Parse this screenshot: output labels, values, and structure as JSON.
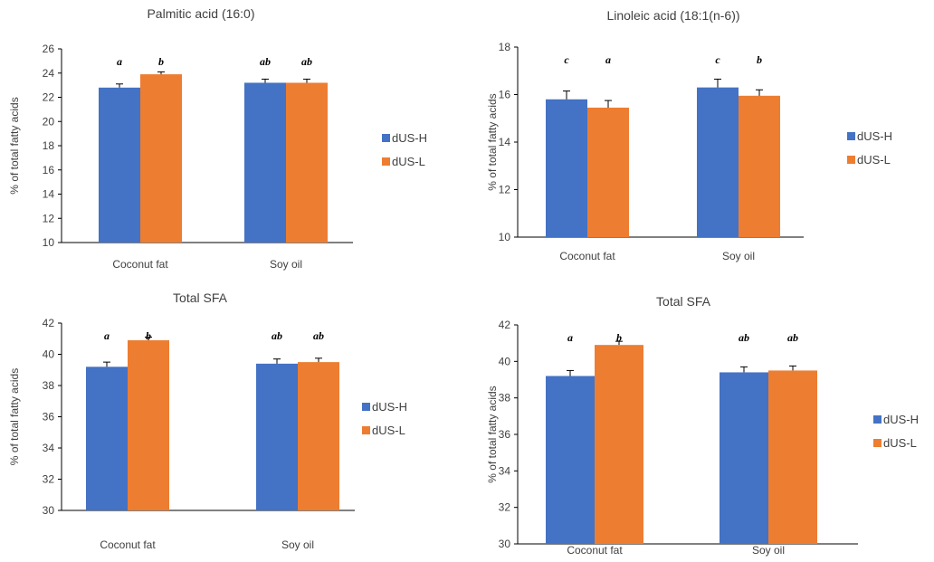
{
  "colors": {
    "dUS-H": "#4472C4",
    "dUS-L": "#ED7D31"
  },
  "chart_data": [
    {
      "type": "bar",
      "title": "Palmitic acid (16:0)",
      "ylabel": "% of total fatty acids",
      "categories": [
        "Coconut fat",
        "Soy oil"
      ],
      "ylim": [
        10,
        26
      ],
      "yticks": [
        10,
        12,
        14,
        16,
        18,
        20,
        22,
        24,
        26
      ],
      "series": [
        {
          "name": "dUS-H",
          "values": [
            22.8,
            23.2
          ],
          "errors": [
            0.3,
            0.3
          ],
          "sig": [
            "a",
            "ab"
          ]
        },
        {
          "name": "dUS-L",
          "values": [
            23.9,
            23.2
          ],
          "errors": [
            0.2,
            0.3
          ],
          "sig": [
            "b",
            "ab"
          ]
        }
      ],
      "legend": "right"
    },
    {
      "type": "bar",
      "title": "Linoleic acid (18:1(n-6))",
      "ylabel": "% of total fatty acids",
      "categories": [
        "Coconut fat",
        "Soy oil"
      ],
      "ylim": [
        10,
        18
      ],
      "yticks": [
        10,
        12,
        14,
        16,
        18
      ],
      "series": [
        {
          "name": "dUS-H",
          "values": [
            15.8,
            16.3
          ],
          "errors": [
            0.35,
            0.35
          ],
          "sig": [
            "c",
            "c"
          ]
        },
        {
          "name": "dUS-L",
          "values": [
            15.45,
            15.95
          ],
          "errors": [
            0.3,
            0.25
          ],
          "sig": [
            "a",
            "b"
          ]
        }
      ],
      "legend": "right"
    },
    {
      "type": "bar",
      "title": "Total SFA",
      "ylabel": "% of total fatty acids",
      "categories": [
        "Coconut fat",
        "Soy oil"
      ],
      "ylim": [
        30,
        42
      ],
      "yticks": [
        30,
        32,
        34,
        36,
        38,
        40,
        42
      ],
      "series": [
        {
          "name": "dUS-H",
          "values": [
            39.2,
            39.4
          ],
          "errors": [
            0.3,
            0.3
          ],
          "sig": [
            "a",
            "ab"
          ]
        },
        {
          "name": "dUS-L",
          "values": [
            40.9,
            39.5
          ],
          "errors": [
            0.2,
            0.25
          ],
          "sig": [
            "b",
            "ab"
          ]
        }
      ],
      "legend": "right"
    },
    {
      "type": "bar",
      "title": "Total SFA",
      "ylabel": "% of total fatty acids",
      "categories": [
        "Coconut fat",
        "Soy oil"
      ],
      "ylim": [
        30,
        42
      ],
      "yticks": [
        30,
        32,
        34,
        36,
        38,
        40,
        42
      ],
      "series": [
        {
          "name": "dUS-H",
          "values": [
            39.2,
            39.4
          ],
          "errors": [
            0.3,
            0.3
          ],
          "sig": [
            "a",
            "ab"
          ]
        },
        {
          "name": "dUS-L",
          "values": [
            40.9,
            39.5
          ],
          "errors": [
            0.2,
            0.25
          ],
          "sig": [
            "b",
            "ab"
          ]
        }
      ],
      "legend": "right"
    }
  ]
}
